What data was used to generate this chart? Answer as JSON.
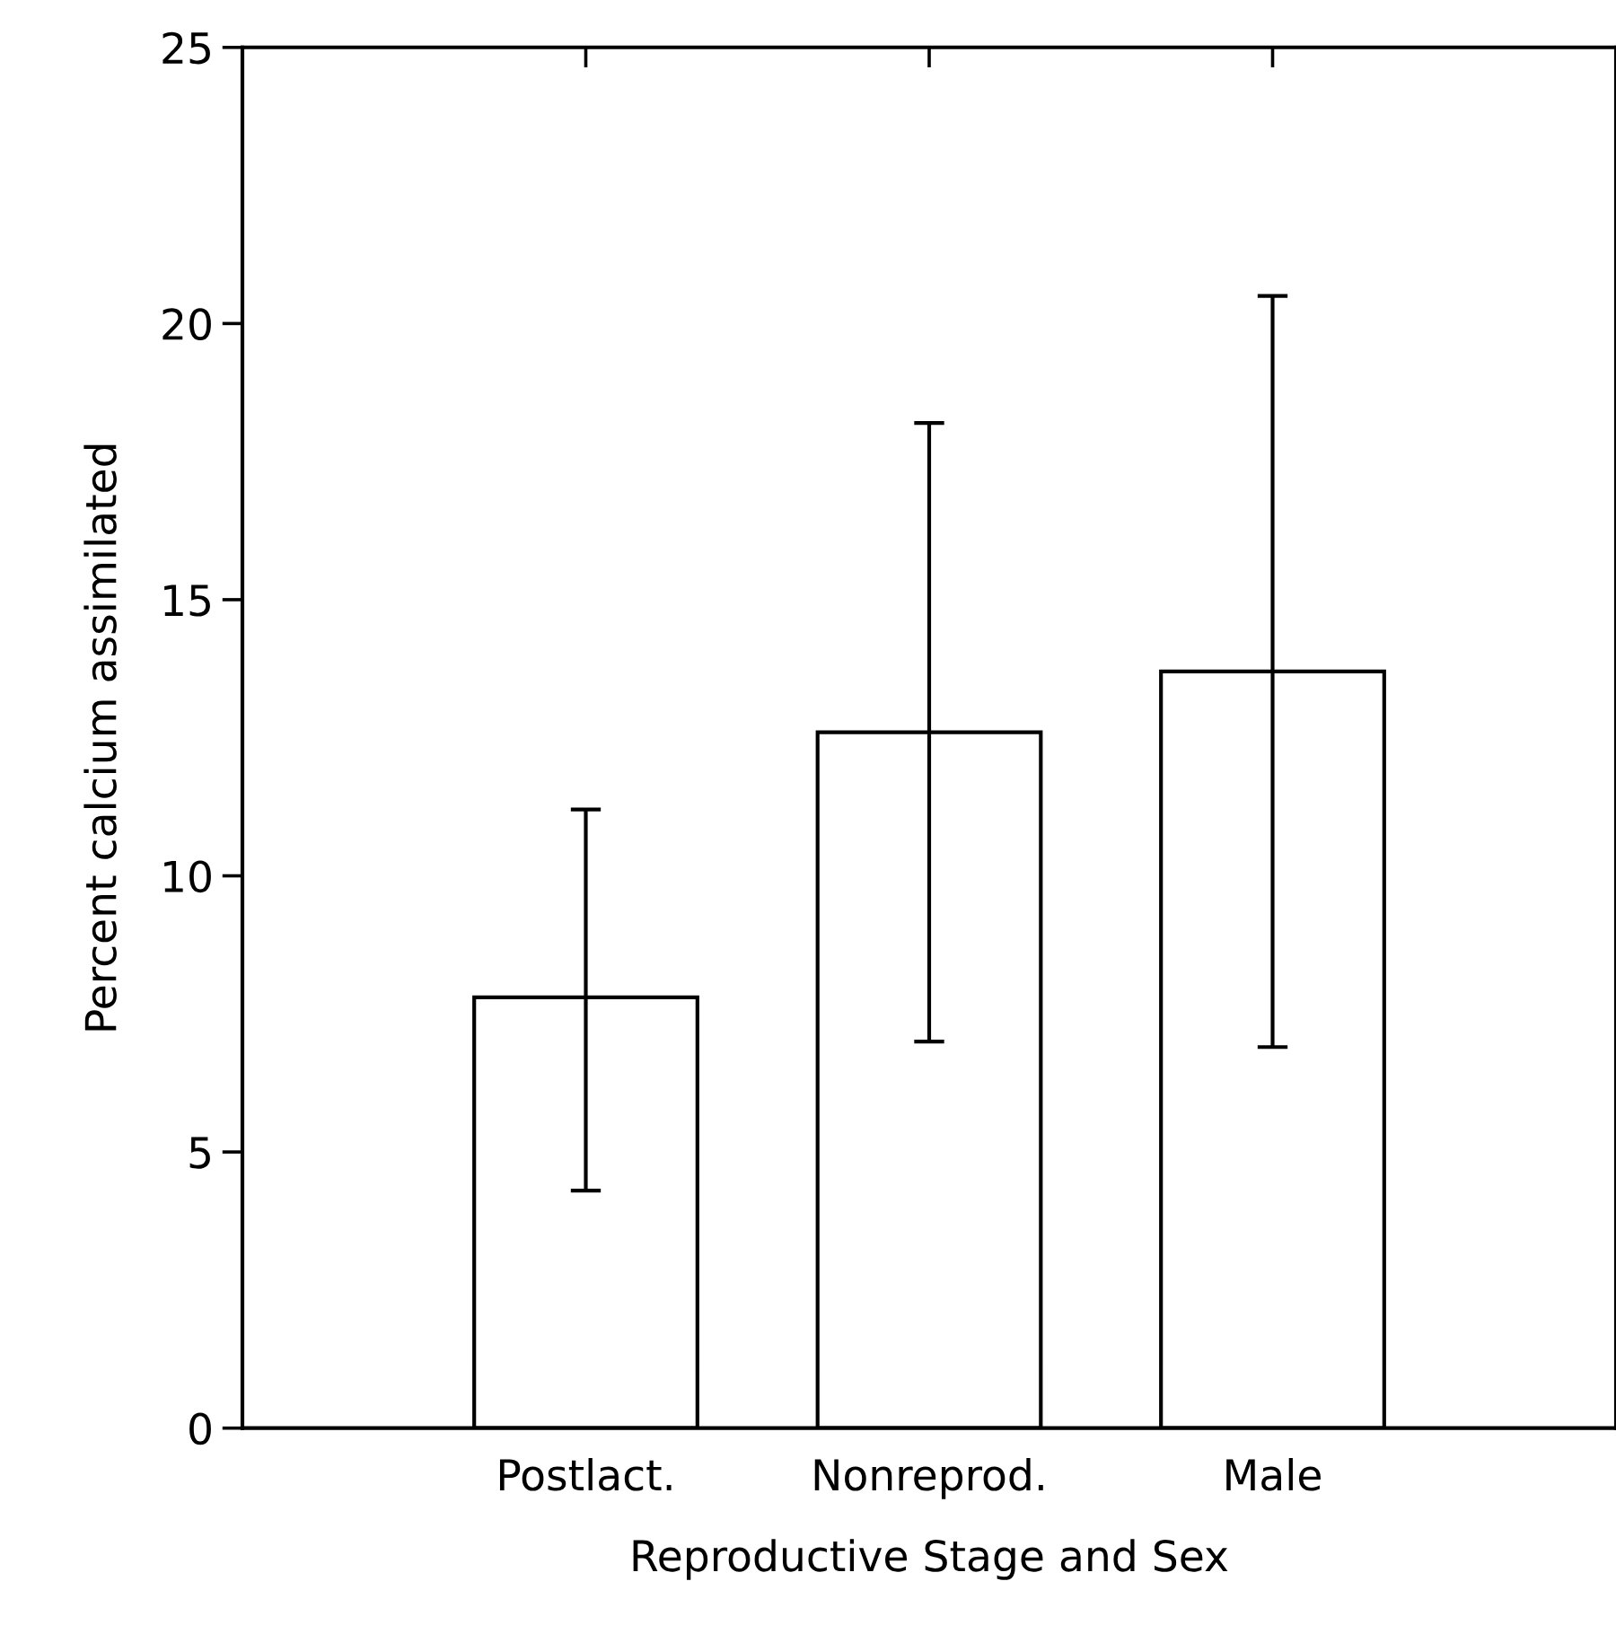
{
  "chart_data": {
    "type": "bar",
    "xlabel": "Reproductive Stage and Sex",
    "ylabel": "Percent calcium assimilated",
    "categories": [
      "Postlact.",
      "Nonreprod.",
      "Male"
    ],
    "values": [
      7.8,
      12.6,
      13.7
    ],
    "errors": [
      [
        4.3,
        11.2
      ],
      [
        7.0,
        18.2
      ],
      [
        6.9,
        20.5
      ]
    ],
    "color": "#ffffff",
    "ylim": [
      0,
      25
    ],
    "yticks": [
      0,
      5,
      10,
      15,
      20,
      25
    ],
    "grid": false
  }
}
